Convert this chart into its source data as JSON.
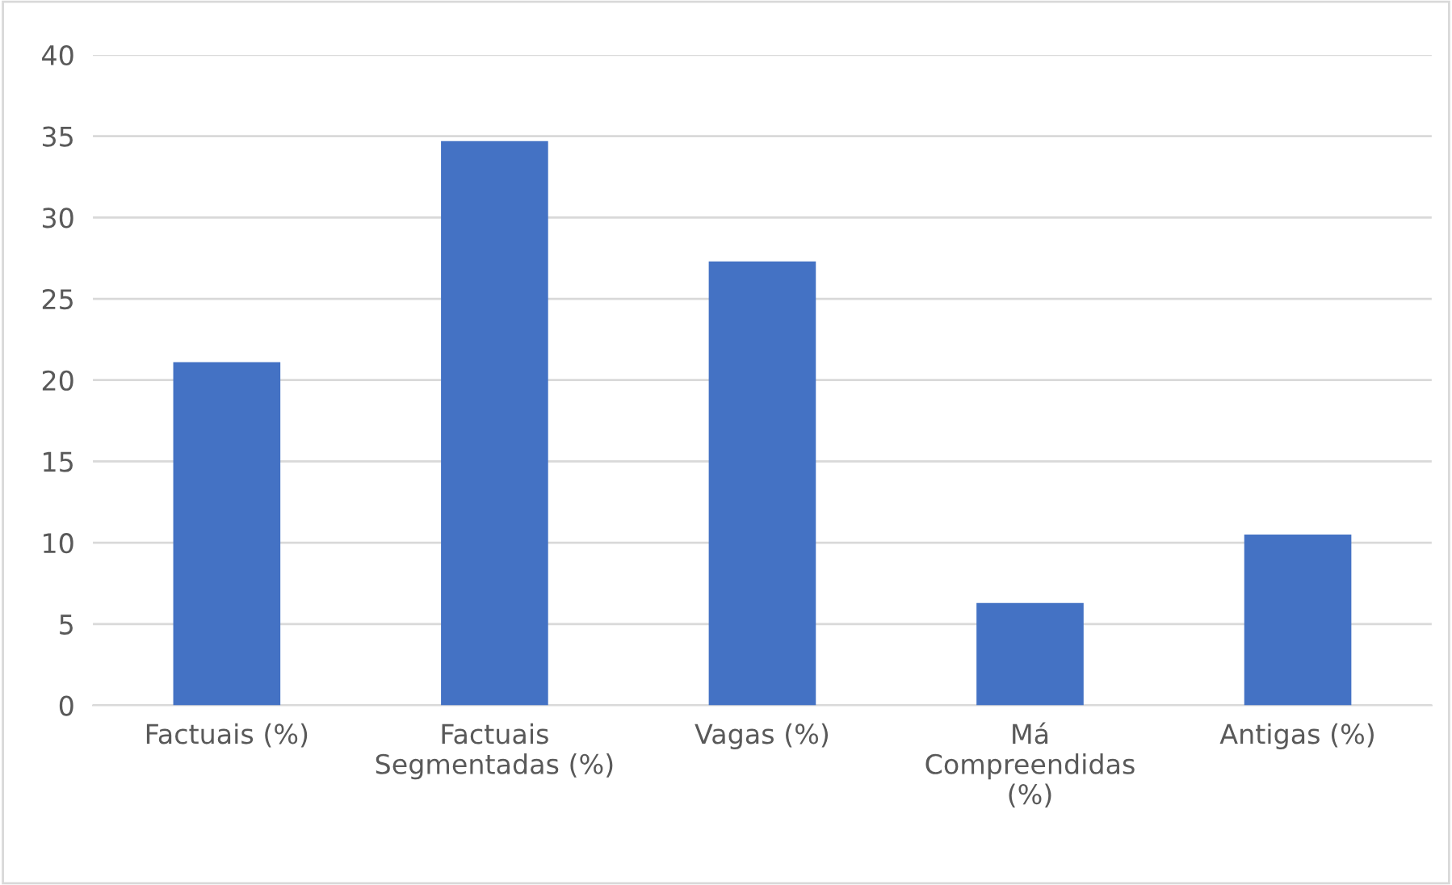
{
  "chart_data": {
    "type": "bar",
    "categories": [
      "Factuais (%)",
      "Factuais\nSegmentadas (%)",
      "Vagas (%)",
      "Má\nCompreendidas\n(%)",
      "Antigas (%)"
    ],
    "values": [
      21.1,
      34.7,
      27.3,
      6.3,
      10.5
    ],
    "color": "#4472c4",
    "ylim": [
      0,
      40
    ],
    "yticks": [
      0,
      5,
      10,
      15,
      20,
      25,
      30,
      35,
      40
    ],
    "grid": "y"
  }
}
